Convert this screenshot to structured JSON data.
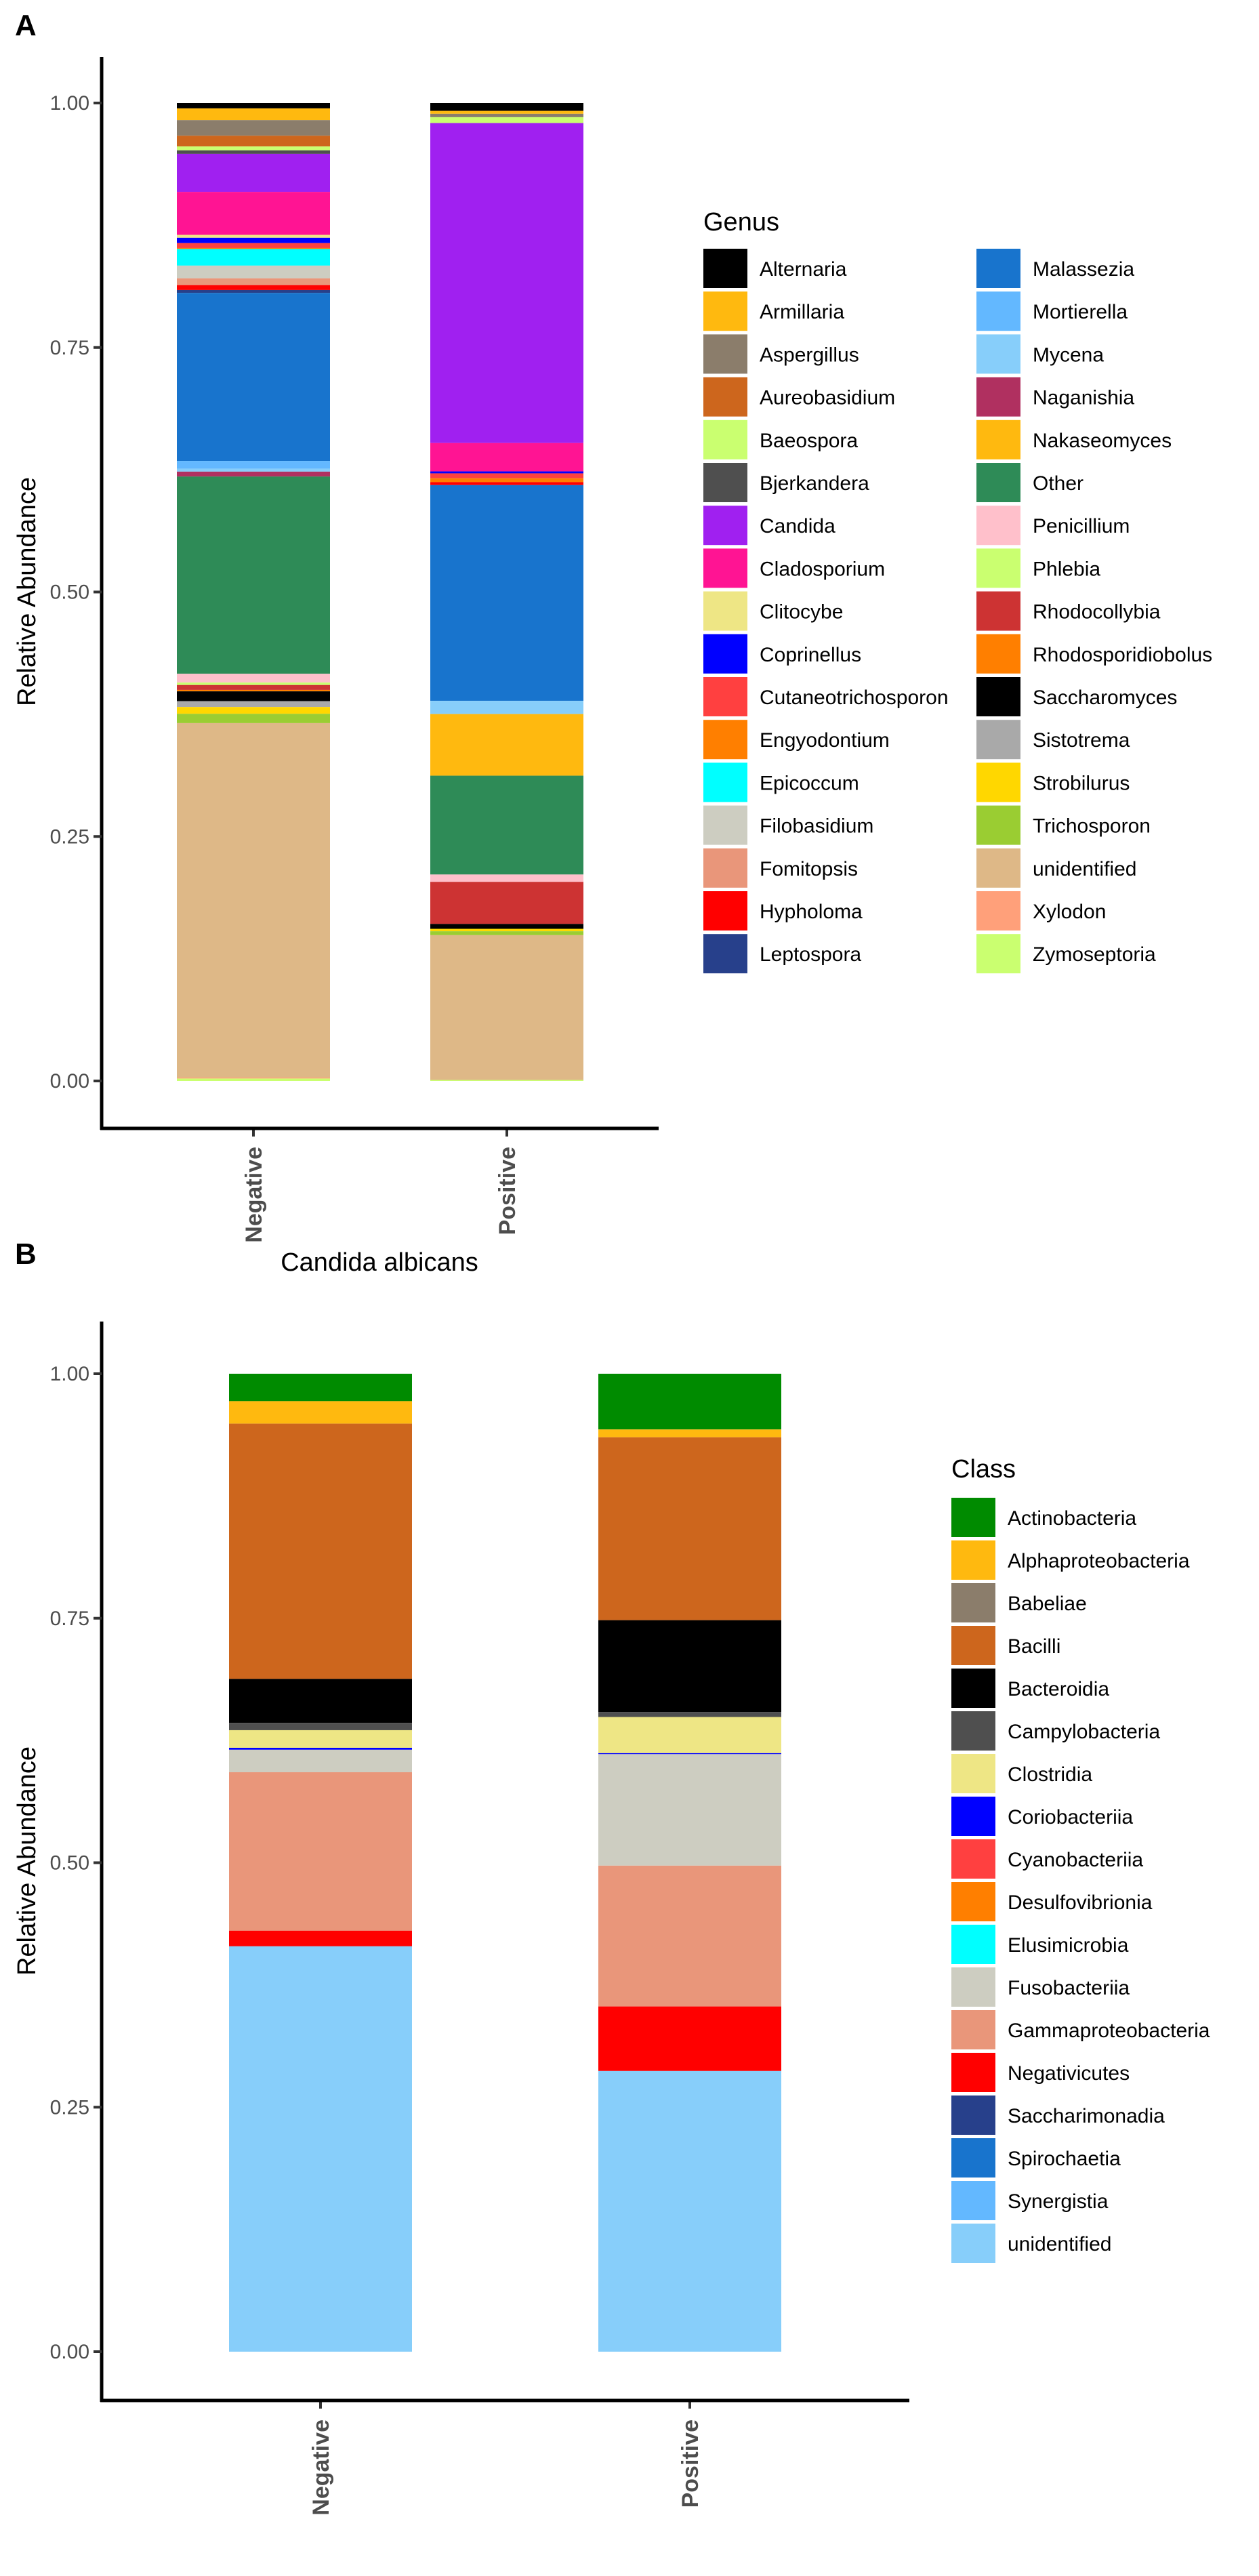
{
  "panels": [
    {
      "label": "A",
      "legend_title": "Genus",
      "legend_columns": 2
    },
    {
      "label": "B",
      "legend_title": "Class",
      "legend_columns": 1
    }
  ],
  "chart_data": [
    {
      "type": "bar",
      "stacked": true,
      "title": "",
      "xlabel": "Candida albicans",
      "ylabel": "Relative Abundance",
      "ylim": [
        0,
        1
      ],
      "yticks": [
        "0.00",
        "0.25",
        "0.50",
        "0.75",
        "1.00"
      ],
      "categories": [
        "Negative",
        "Positive"
      ],
      "legend_title": "Genus",
      "legend_position": "right",
      "series": [
        {
          "name": "Alternaria",
          "color": "#000000",
          "values": [
            0.0055,
            0.008
          ]
        },
        {
          "name": "Armillaria",
          "color": "#FFB90F",
          "values": [
            0.012,
            0.003
          ]
        },
        {
          "name": "Aspergillus",
          "color": "#8B7D6B",
          "values": [
            0.016,
            0.0035
          ]
        },
        {
          "name": "Aureobasidium",
          "color": "#CD661D",
          "values": [
            0.011,
            0
          ]
        },
        {
          "name": "Baeospora",
          "color": "#CAFF70",
          "values": [
            0.004,
            0.006
          ]
        },
        {
          "name": "Bjerkandera",
          "color": "#4F4F4F",
          "values": [
            0.0035,
            0
          ]
        },
        {
          "name": "Candida",
          "color": "#A020F0",
          "values": [
            0.039,
            0.327
          ]
        },
        {
          "name": "Cladosporium",
          "color": "#FF1493",
          "values": [
            0.044,
            0.029
          ]
        },
        {
          "name": "Clitocybe",
          "color": "#EEE685",
          "values": [
            0.003,
            0
          ]
        },
        {
          "name": "Coprinellus",
          "color": "#0000FF",
          "values": [
            0.0055,
            0.002
          ]
        },
        {
          "name": "Cutaneotrichosporon",
          "color": "#FF4040",
          "values": [
            0.005,
            0.005
          ]
        },
        {
          "name": "Engyodontium",
          "color": "#FF7F00",
          "values": [
            0.001,
            0.004
          ]
        },
        {
          "name": "Epicoccum",
          "color": "#00FFFF",
          "values": [
            0.017,
            0
          ]
        },
        {
          "name": "Filobasidium",
          "color": "#CDCDC1",
          "values": [
            0.013,
            0
          ]
        },
        {
          "name": "Fomitopsis",
          "color": "#E9967A",
          "values": [
            0.007,
            0
          ]
        },
        {
          "name": "Hypholoma",
          "color": "#FF0000",
          "values": [
            0.005,
            0.003
          ]
        },
        {
          "name": "Leptospora",
          "color": "#27408B",
          "values": [
            0.003,
            0
          ]
        },
        {
          "name": "Malassezia",
          "color": "#1874CD",
          "values": [
            0.172,
            0.2205
          ]
        },
        {
          "name": "Mortierella",
          "color": "#63B8FF",
          "values": [
            0.008,
            0
          ]
        },
        {
          "name": "Mycena",
          "color": "#87CEFA",
          "values": [
            0.003,
            0.0135
          ]
        },
        {
          "name": "Naganishia",
          "color": "#B03060",
          "values": [
            0.005,
            0
          ]
        },
        {
          "name": "Nakaseomyces",
          "color": "#FFB90F",
          "values": [
            0,
            0.063
          ]
        },
        {
          "name": "Other",
          "color": "#2E8B57",
          "values": [
            0.202,
            0.101
          ]
        },
        {
          "name": "Penicillium",
          "color": "#FFC0CB",
          "values": [
            0.009,
            0.0075
          ]
        },
        {
          "name": "Phlebia",
          "color": "#CAFF70",
          "values": [
            0.0025,
            0
          ]
        },
        {
          "name": "Rhodocollybia",
          "color": "#CD3333",
          "values": [
            0.005,
            0.043
          ]
        },
        {
          "name": "Rhodosporidiobolus",
          "color": "#FF7F00",
          "values": [
            0.0015,
            0
          ]
        },
        {
          "name": "Saccharomyces",
          "color": "#000000",
          "values": [
            0.01,
            0.005
          ]
        },
        {
          "name": "Sistotrema",
          "color": "#A9A9A9",
          "values": [
            0.006,
            0
          ]
        },
        {
          "name": "Strobilurus",
          "color": "#FFD700",
          "values": [
            0.007,
            0.0025
          ]
        },
        {
          "name": "Trichosporon",
          "color": "#9ACD32",
          "values": [
            0.0095,
            0.004
          ]
        },
        {
          "name": "unidentified",
          "color": "#DEB887",
          "values": [
            0.363,
            0.148
          ]
        },
        {
          "name": "Xylodon",
          "color": "#FFA07A",
          "values": [
            0.001,
            0
          ]
        },
        {
          "name": "Zymoseptoria",
          "color": "#CAFF70",
          "values": [
            0.0025,
            0.001
          ]
        }
      ]
    },
    {
      "type": "bar",
      "stacked": true,
      "title": "",
      "xlabel": "",
      "ylabel": "Relative Abundance",
      "ylim": [
        0,
        1
      ],
      "yticks": [
        "0.00",
        "0.25",
        "0.50",
        "0.75",
        "1.00"
      ],
      "categories": [
        "Negative",
        "Positive"
      ],
      "legend_title": "Class",
      "legend_position": "right",
      "series": [
        {
          "name": "Actinobacteria",
          "color": "#008B00",
          "values": [
            0.028,
            0.057
          ]
        },
        {
          "name": "Alphaproteobacteria",
          "color": "#FFB90F",
          "values": [
            0.023,
            0.008
          ]
        },
        {
          "name": "Babeliae",
          "color": "#8B7D6B",
          "values": [
            0,
            0
          ]
        },
        {
          "name": "Bacilli",
          "color": "#CD661D",
          "values": [
            0.261,
            0.187
          ]
        },
        {
          "name": "Bacteroidia",
          "color": "#000000",
          "values": [
            0.045,
            0.094
          ]
        },
        {
          "name": "Campylobacteria",
          "color": "#4F4F4F",
          "values": [
            0.0075,
            0.005
          ]
        },
        {
          "name": "Clostridia",
          "color": "#EEE685",
          "values": [
            0.018,
            0.037
          ]
        },
        {
          "name": "Coriobacteriia",
          "color": "#0000FF",
          "values": [
            0.002,
            0.001
          ]
        },
        {
          "name": "Cyanobacteriia",
          "color": "#FF4040",
          "values": [
            0,
            0
          ]
        },
        {
          "name": "Desulfovibrionia",
          "color": "#FF7F00",
          "values": [
            0,
            0
          ]
        },
        {
          "name": "Elusimicrobia",
          "color": "#00FFFF",
          "values": [
            0,
            0
          ]
        },
        {
          "name": "Fusobacteriia",
          "color": "#CDCDC1",
          "values": [
            0.023,
            0.114
          ]
        },
        {
          "name": "Gammaproteobacteria",
          "color": "#E9967A",
          "values": [
            0.162,
            0.144
          ]
        },
        {
          "name": "Negativicutes",
          "color": "#FF0000",
          "values": [
            0.016,
            0.066
          ]
        },
        {
          "name": "Saccharimonadia",
          "color": "#27408B",
          "values": [
            0,
            0
          ]
        },
        {
          "name": "Spirochaetia",
          "color": "#1874CD",
          "values": [
            0,
            0
          ]
        },
        {
          "name": "Synergistia",
          "color": "#63B8FF",
          "values": [
            0,
            0
          ]
        },
        {
          "name": "unidentified",
          "color": "#87CEFA",
          "values": [
            0.4145,
            0.287
          ]
        }
      ]
    }
  ]
}
